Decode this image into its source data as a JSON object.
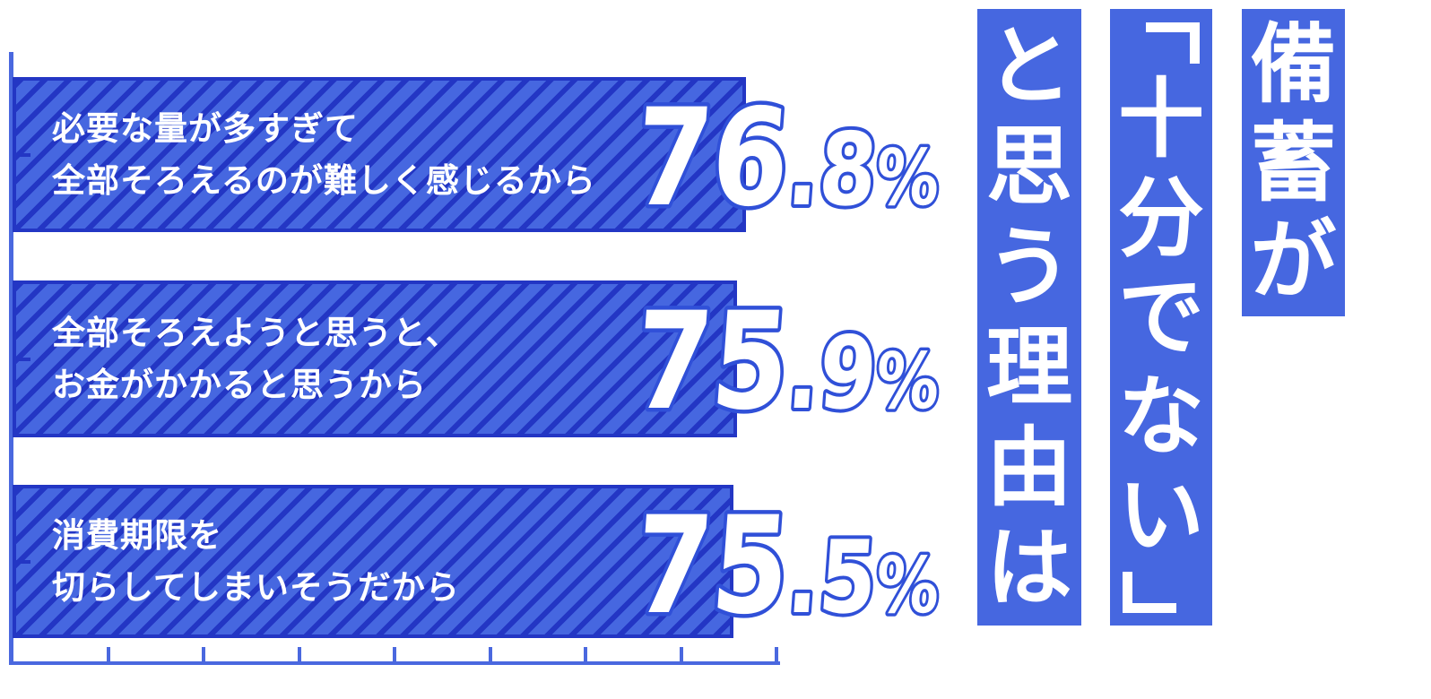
{
  "page": {
    "background": "#FFFFFF",
    "kind": "survey-infographic"
  },
  "title": {
    "full": "備蓄が「十分でない」と思う理由は",
    "segments": [
      "備蓄が",
      "「十分でない」",
      "と思う理由は"
    ]
  },
  "chart_data": {
    "type": "bar",
    "orientation": "horizontal",
    "unit": "%",
    "categories": [
      "必要な量が多すぎて全部そろえるのが難しく感じるから",
      "全部そろえようと思うと、お金がかかると思うから",
      "消費期限を切らしてしまいそうだから"
    ],
    "category_lines": [
      [
        "必要な量が多すぎて",
        "全部そろえるのが難しく感じるから"
      ],
      [
        "全部そろえようと思うと、",
        "お金がかかると思うから"
      ],
      [
        "消費期限を",
        "切らしてしまいそうだから"
      ]
    ],
    "values": [
      76.8,
      75.9,
      75.5
    ],
    "value_labels": [
      "76.8%",
      "75.9%",
      "75.5%"
    ],
    "xlabel": "",
    "ylabel": "",
    "xlim": [
      0,
      80
    ],
    "tick_step": 10,
    "grid": false,
    "legend_position": "none",
    "bar_pattern": "diagonal-hatch"
  },
  "colors": {
    "bar_fill": "#4667E0",
    "bar_stripe": "#2336C4",
    "bar_border": "#2336C4",
    "axis": "#4A68DF",
    "category_text": "#FFFFFF",
    "value_fill": "#FFFFFF",
    "value_outline": "#3050D8",
    "title_bg": "#4667E0",
    "title_text": "#FFFFFF"
  }
}
